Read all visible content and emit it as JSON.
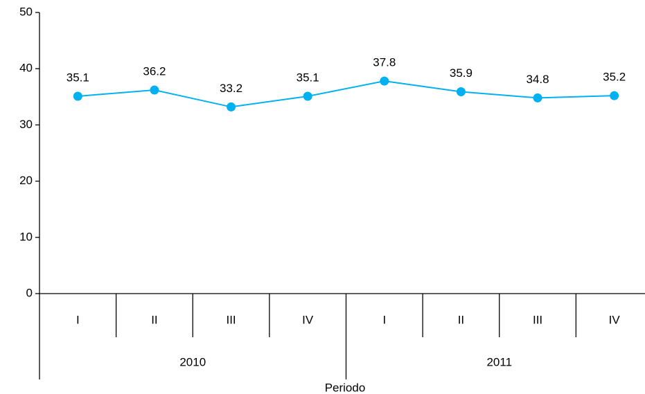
{
  "chart_data": {
    "type": "line",
    "x_label": "Periodo",
    "groups": [
      {
        "label": "2010",
        "categories": [
          "I",
          "II",
          "III",
          "IV"
        ]
      },
      {
        "label": "2011",
        "categories": [
          "I",
          "II",
          "III",
          "IV"
        ]
      }
    ],
    "values": [
      35.1,
      36.2,
      33.2,
      35.1,
      37.8,
      35.9,
      34.8,
      35.2
    ],
    "color": "#00b0f0",
    "ylim": [
      0,
      50
    ],
    "yticks": [
      0,
      10,
      20,
      30,
      40,
      50
    ],
    "grid": false
  }
}
